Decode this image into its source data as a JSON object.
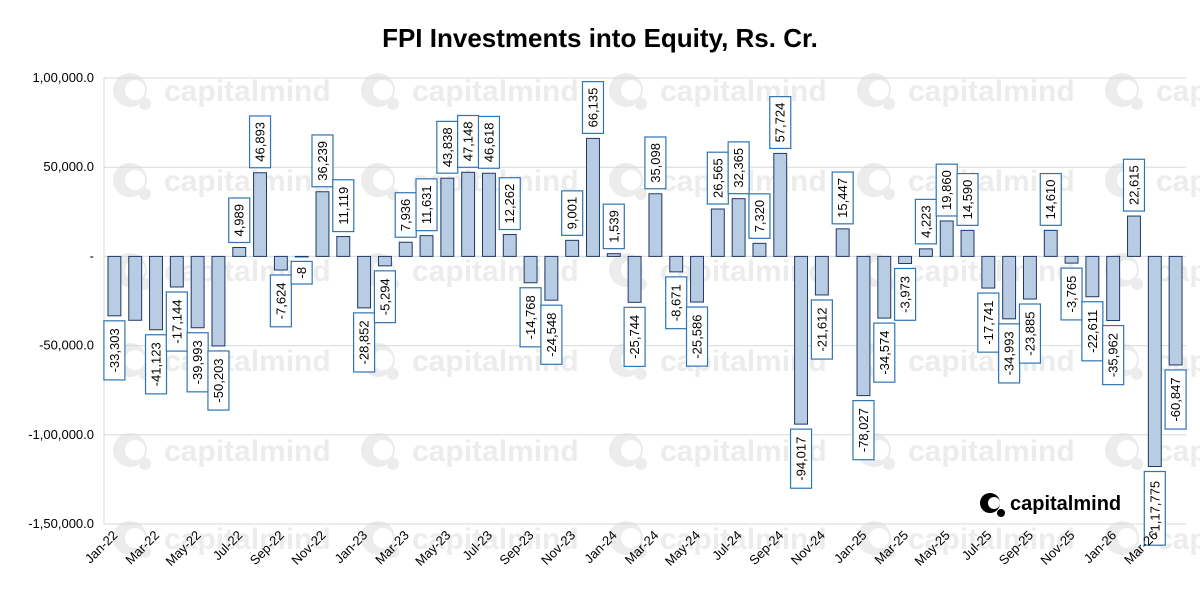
{
  "chart_data": {
    "type": "bar",
    "title": "FPI Investments into Equity, Rs. Cr.",
    "xlabel": "",
    "ylabel": "",
    "ylim": [
      -150000,
      100000
    ],
    "yticks": [
      100000,
      50000,
      0,
      -50000,
      -100000,
      -150000
    ],
    "ytick_labels": [
      "1,00,000.0",
      "50,000.0",
      "-",
      "-50,000.0",
      "-1,00,000.0",
      "-1,50,000.0"
    ],
    "grid": true,
    "legend": "none",
    "bar_color": "#b8cce4",
    "bar_edge_color": "#1f3864",
    "label_box_color": "#2e75b6",
    "categories": [
      "Jan-22",
      "Feb-22",
      "Mar-22",
      "Apr-22",
      "May-22",
      "Jun-22",
      "Jul-22",
      "Aug-22",
      "Sep-22",
      "Oct-22",
      "Nov-22",
      "Dec-22",
      "Jan-23",
      "Feb-23",
      "Mar-23",
      "Apr-23",
      "May-23",
      "Jun-23",
      "Jul-23",
      "Aug-23",
      "Sep-23",
      "Oct-23",
      "Nov-23",
      "Dec-23",
      "Jan-24",
      "Feb-24",
      "Mar-24",
      "Apr-24",
      "May-24",
      "Jun-24",
      "Jul-24",
      "Aug-24",
      "Sep-24",
      "Oct-24",
      "Nov-24",
      "Dec-24",
      "Jan-25",
      "Feb-25",
      "Mar-25",
      "Apr-25",
      "May-25",
      "Jun-25",
      "Jul-25",
      "Aug-25",
      "Sep-25",
      "Oct-25",
      "Nov-25",
      "Dec-25",
      "Jan-26",
      "Feb-26",
      "Mar-26",
      "Apr-26"
    ],
    "x_tick_labels": [
      "Jan-22",
      "Mar-22",
      "May-22",
      "Jul-22",
      "Sep-22",
      "Nov-22",
      "Jan-23",
      "Mar-23",
      "May-23",
      "Jul-23",
      "Sep-23",
      "Nov-23",
      "Jan-24",
      "Mar-24",
      "May-24",
      "Jul-24",
      "Sep-24",
      "Nov-24",
      "Jan-25",
      "Mar-25",
      "May-25",
      "Jul-25",
      "Sep-25",
      "Nov-25",
      "Jan-26",
      "Mar-26"
    ],
    "values": [
      -33303,
      -35800,
      -41123,
      -17144,
      -39993,
      -50203,
      4989,
      46893,
      -7624,
      -8,
      36239,
      11119,
      -28852,
      -5294,
      7936,
      11631,
      43838,
      47148,
      46618,
      12262,
      -14768,
      -24548,
      9001,
      66135,
      1539,
      -25744,
      35098,
      -8671,
      -25586,
      26565,
      32365,
      7320,
      57724,
      -94017,
      -21612,
      15447,
      -78027,
      -34574,
      -3973,
      4223,
      19860,
      14590,
      -17741,
      -34993,
      -23885,
      14610,
      -3765,
      -22611,
      -35962,
      22615,
      -117775,
      -60847
    ],
    "labels": [
      "-33,303",
      null,
      "-41,123",
      "-17,144",
      "-39,993",
      "-50,203",
      "4,989",
      "46,893",
      "-7,624",
      "-8",
      "36,239",
      "11,119",
      "-28,852",
      "-5,294",
      "7,936",
      "11,631",
      "43,838",
      "47,148",
      "46,618",
      "12,262",
      "-14,768",
      "-24,548",
      "9,001",
      "66,135",
      "1,539",
      "-25,744",
      "35,098",
      "-8,671",
      "-25,586",
      "26,565",
      "32,365",
      "7,320",
      "57,724",
      "-94,017",
      "-21,612",
      "15,447",
      "-78,027",
      "-34,574",
      "-3,973",
      "4,223",
      "19,860",
      "14,590",
      "-17,741",
      "-34,993",
      "-23,885",
      "14,610",
      "-3,765",
      "-22,611",
      "-35,962",
      "22,615",
      "-1,17,775",
      "-60,847"
    ]
  },
  "watermark": {
    "text": "capitalmind"
  },
  "logo": {
    "text": "capitalmind",
    "icon": "capitalmind-logo-icon"
  }
}
